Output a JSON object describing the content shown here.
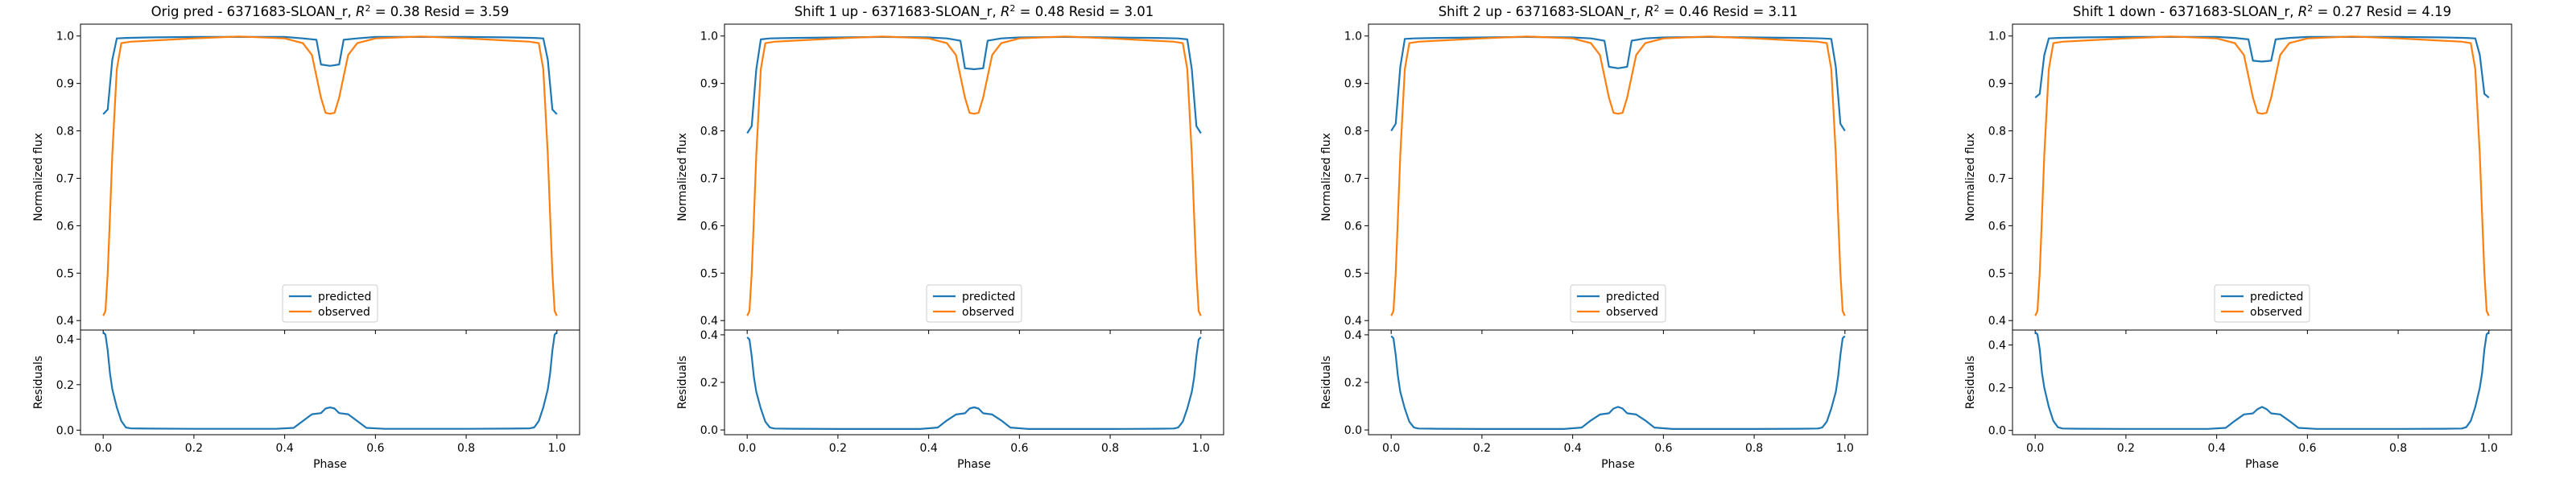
{
  "figure": {
    "background": "#ffffff",
    "colors": {
      "predicted": "#1f77b4",
      "observed": "#ff7f0e",
      "axis": "#000000"
    }
  },
  "chart_data": [
    {
      "type": "line",
      "title": "Orig pred - 6371683-SLOAN_r, R² = 0.38 Resid = 3.59",
      "r2": 0.38,
      "resid": {
        "xlabel": "Phase",
        "ylabel": "Residuals",
        "ylim": [
          -0.02,
          0.44
        ],
        "yticks": [
          0.0,
          0.2,
          0.4
        ],
        "xticks": [
          0.0,
          0.2,
          0.4,
          0.6,
          0.8,
          1.0
        ],
        "x": [
          0.0,
          0.005,
          0.01,
          0.015,
          0.02,
          0.03,
          0.04,
          0.05,
          0.06,
          0.1,
          0.2,
          0.3,
          0.38,
          0.42,
          0.44,
          0.46,
          0.48,
          0.49,
          0.5,
          0.51,
          0.52,
          0.54,
          0.56,
          0.58,
          0.62,
          0.7,
          0.8,
          0.9,
          0.94,
          0.95,
          0.96,
          0.97,
          0.98,
          0.985,
          0.99,
          0.995,
          1.0
        ],
        "y": [
          0.43,
          0.42,
          0.35,
          0.25,
          0.18,
          0.1,
          0.04,
          0.012,
          0.008,
          0.007,
          0.006,
          0.006,
          0.006,
          0.01,
          0.04,
          0.07,
          0.075,
          0.095,
          0.1,
          0.095,
          0.075,
          0.07,
          0.04,
          0.01,
          0.006,
          0.006,
          0.006,
          0.007,
          0.008,
          0.012,
          0.04,
          0.1,
          0.18,
          0.25,
          0.35,
          0.42,
          0.43
        ]
      },
      "main": {
        "ylabel": "Normalized flux",
        "xlim": [
          -0.05,
          1.05
        ],
        "ylim": [
          0.38,
          1.025
        ],
        "yticks": [
          0.4,
          0.5,
          0.6,
          0.7,
          0.8,
          0.9,
          1.0
        ],
        "legend": "lower center",
        "series": [
          {
            "name": "predicted",
            "color": "#1f77b4",
            "x": [
              0.0,
              0.01,
              0.02,
              0.03,
              0.05,
              0.1,
              0.2,
              0.3,
              0.4,
              0.44,
              0.47,
              0.48,
              0.5,
              0.52,
              0.53,
              0.56,
              0.6,
              0.7,
              0.8,
              0.9,
              0.95,
              0.97,
              0.98,
              0.99,
              1.0
            ],
            "y": [
              0.835,
              0.845,
              0.95,
              0.995,
              0.996,
              0.997,
              0.998,
              0.998,
              0.998,
              0.995,
              0.992,
              0.94,
              0.937,
              0.94,
              0.992,
              0.995,
              0.998,
              0.998,
              0.998,
              0.997,
              0.996,
              0.995,
              0.95,
              0.845,
              0.835
            ]
          },
          {
            "name": "observed",
            "color": "#ff7f0e",
            "x": [
              0.0,
              0.005,
              0.01,
              0.015,
              0.02,
              0.03,
              0.04,
              0.06,
              0.1,
              0.2,
              0.3,
              0.4,
              0.44,
              0.46,
              0.48,
              0.49,
              0.5,
              0.51,
              0.52,
              0.54,
              0.56,
              0.6,
              0.7,
              0.8,
              0.9,
              0.94,
              0.96,
              0.97,
              0.98,
              0.985,
              0.99,
              0.995,
              1.0
            ],
            "y": [
              0.41,
              0.42,
              0.5,
              0.62,
              0.75,
              0.93,
              0.985,
              0.988,
              0.99,
              0.995,
              0.999,
              0.995,
              0.985,
              0.96,
              0.87,
              0.838,
              0.836,
              0.838,
              0.87,
              0.96,
              0.985,
              0.995,
              0.999,
              0.995,
              0.99,
              0.988,
              0.985,
              0.93,
              0.75,
              0.62,
              0.5,
              0.42,
              0.41
            ]
          }
        ],
        "legend_entries": [
          "predicted",
          "observed"
        ]
      }
    },
    {
      "type": "line",
      "title": "Shift 1 up - 6371683-SLOAN_r, R² = 0.48 Resid = 3.01",
      "r2": 0.48,
      "resid": {
        "xlabel": "Phase",
        "ylabel": "Residuals",
        "ylim": [
          -0.02,
          0.42
        ],
        "yticks": [
          0.0,
          0.2,
          0.4
        ],
        "xticks": [
          0.0,
          0.2,
          0.4,
          0.6,
          0.8,
          1.0
        ],
        "x": [
          0.0,
          0.005,
          0.01,
          0.015,
          0.02,
          0.03,
          0.04,
          0.05,
          0.06,
          0.1,
          0.2,
          0.3,
          0.38,
          0.42,
          0.44,
          0.46,
          0.48,
          0.49,
          0.5,
          0.51,
          0.52,
          0.54,
          0.56,
          0.58,
          0.62,
          0.7,
          0.8,
          0.9,
          0.94,
          0.95,
          0.96,
          0.97,
          0.98,
          0.985,
          0.99,
          0.995,
          1.0
        ],
        "y": [
          0.39,
          0.38,
          0.31,
          0.22,
          0.16,
          0.09,
          0.035,
          0.01,
          0.006,
          0.005,
          0.004,
          0.004,
          0.004,
          0.01,
          0.04,
          0.065,
          0.07,
          0.09,
          0.095,
          0.09,
          0.07,
          0.065,
          0.04,
          0.01,
          0.004,
          0.004,
          0.004,
          0.005,
          0.006,
          0.01,
          0.035,
          0.09,
          0.16,
          0.22,
          0.31,
          0.38,
          0.39
        ]
      },
      "main": {
        "ylabel": "Normalized flux",
        "xlim": [
          -0.05,
          1.05
        ],
        "ylim": [
          0.38,
          1.025
        ],
        "yticks": [
          0.4,
          0.5,
          0.6,
          0.7,
          0.8,
          0.9,
          1.0
        ],
        "legend": "lower center",
        "series": [
          {
            "name": "predicted",
            "color": "#1f77b4",
            "x": [
              0.0,
              0.01,
              0.02,
              0.03,
              0.05,
              0.1,
              0.2,
              0.3,
              0.4,
              0.44,
              0.47,
              0.48,
              0.5,
              0.52,
              0.53,
              0.56,
              0.6,
              0.7,
              0.8,
              0.9,
              0.95,
              0.97,
              0.98,
              0.99,
              1.0
            ],
            "y": [
              0.795,
              0.81,
              0.93,
              0.993,
              0.995,
              0.996,
              0.997,
              0.998,
              0.997,
              0.995,
              0.99,
              0.932,
              0.93,
              0.932,
              0.99,
              0.995,
              0.997,
              0.998,
              0.997,
              0.996,
              0.995,
              0.993,
              0.93,
              0.81,
              0.795
            ]
          },
          {
            "name": "observed",
            "color": "#ff7f0e",
            "x": [
              0.0,
              0.005,
              0.01,
              0.015,
              0.02,
              0.03,
              0.04,
              0.06,
              0.1,
              0.2,
              0.3,
              0.4,
              0.44,
              0.46,
              0.48,
              0.49,
              0.5,
              0.51,
              0.52,
              0.54,
              0.56,
              0.6,
              0.7,
              0.8,
              0.9,
              0.94,
              0.96,
              0.97,
              0.98,
              0.985,
              0.99,
              0.995,
              1.0
            ],
            "y": [
              0.41,
              0.42,
              0.5,
              0.62,
              0.75,
              0.93,
              0.985,
              0.988,
              0.99,
              0.995,
              0.999,
              0.995,
              0.985,
              0.96,
              0.87,
              0.838,
              0.836,
              0.838,
              0.87,
              0.96,
              0.985,
              0.995,
              0.999,
              0.995,
              0.99,
              0.988,
              0.985,
              0.93,
              0.75,
              0.62,
              0.5,
              0.42,
              0.41
            ]
          }
        ],
        "legend_entries": [
          "predicted",
          "observed"
        ]
      }
    },
    {
      "type": "line",
      "title": "Shift 2 up - 6371683-SLOAN_r, R² = 0.46 Resid = 3.11",
      "r2": 0.46,
      "resid": {
        "xlabel": "Phase",
        "ylabel": "Residuals",
        "ylim": [
          -0.02,
          0.42
        ],
        "yticks": [
          0.0,
          0.2,
          0.4
        ],
        "xticks": [
          0.0,
          0.2,
          0.4,
          0.6,
          0.8,
          1.0
        ],
        "x": [
          0.0,
          0.005,
          0.01,
          0.015,
          0.02,
          0.03,
          0.04,
          0.05,
          0.06,
          0.1,
          0.2,
          0.3,
          0.38,
          0.42,
          0.44,
          0.46,
          0.48,
          0.49,
          0.5,
          0.51,
          0.52,
          0.54,
          0.56,
          0.58,
          0.62,
          0.7,
          0.8,
          0.9,
          0.94,
          0.95,
          0.96,
          0.97,
          0.98,
          0.985,
          0.99,
          0.995,
          1.0
        ],
        "y": [
          0.395,
          0.385,
          0.315,
          0.225,
          0.16,
          0.09,
          0.035,
          0.01,
          0.006,
          0.005,
          0.004,
          0.004,
          0.004,
          0.01,
          0.04,
          0.065,
          0.07,
          0.09,
          0.097,
          0.09,
          0.07,
          0.065,
          0.04,
          0.01,
          0.004,
          0.004,
          0.004,
          0.005,
          0.006,
          0.01,
          0.035,
          0.09,
          0.16,
          0.225,
          0.315,
          0.385,
          0.395
        ]
      },
      "main": {
        "ylabel": "Normalized flux",
        "xlim": [
          -0.05,
          1.05
        ],
        "ylim": [
          0.38,
          1.025
        ],
        "yticks": [
          0.4,
          0.5,
          0.6,
          0.7,
          0.8,
          0.9,
          1.0
        ],
        "legend": "lower center",
        "series": [
          {
            "name": "predicted",
            "color": "#1f77b4",
            "x": [
              0.0,
              0.01,
              0.02,
              0.03,
              0.05,
              0.1,
              0.2,
              0.3,
              0.4,
              0.44,
              0.47,
              0.48,
              0.5,
              0.52,
              0.53,
              0.56,
              0.6,
              0.7,
              0.8,
              0.9,
              0.95,
              0.97,
              0.98,
              0.99,
              1.0
            ],
            "y": [
              0.8,
              0.815,
              0.935,
              0.994,
              0.995,
              0.996,
              0.997,
              0.998,
              0.997,
              0.995,
              0.99,
              0.935,
              0.932,
              0.935,
              0.99,
              0.995,
              0.997,
              0.998,
              0.997,
              0.996,
              0.995,
              0.994,
              0.935,
              0.815,
              0.8
            ]
          },
          {
            "name": "observed",
            "color": "#ff7f0e",
            "x": [
              0.0,
              0.005,
              0.01,
              0.015,
              0.02,
              0.03,
              0.04,
              0.06,
              0.1,
              0.2,
              0.3,
              0.4,
              0.44,
              0.46,
              0.48,
              0.49,
              0.5,
              0.51,
              0.52,
              0.54,
              0.56,
              0.6,
              0.7,
              0.8,
              0.9,
              0.94,
              0.96,
              0.97,
              0.98,
              0.985,
              0.99,
              0.995,
              1.0
            ],
            "y": [
              0.41,
              0.42,
              0.5,
              0.62,
              0.75,
              0.93,
              0.985,
              0.988,
              0.99,
              0.995,
              0.999,
              0.995,
              0.985,
              0.96,
              0.87,
              0.838,
              0.836,
              0.838,
              0.87,
              0.96,
              0.985,
              0.995,
              0.999,
              0.995,
              0.99,
              0.988,
              0.985,
              0.93,
              0.75,
              0.62,
              0.5,
              0.42,
              0.41
            ]
          }
        ],
        "legend_entries": [
          "predicted",
          "observed"
        ]
      }
    },
    {
      "type": "line",
      "title": "Shift 1 down - 6371683-SLOAN_r, R² = 0.27 Resid = 4.19",
      "r2": 0.27,
      "resid": {
        "xlabel": "Phase",
        "ylabel": "Residuals",
        "ylim": [
          -0.02,
          0.47
        ],
        "yticks": [
          0.0,
          0.2,
          0.4
        ],
        "xticks": [
          0.0,
          0.2,
          0.4,
          0.6,
          0.8,
          1.0
        ],
        "x": [
          0.0,
          0.005,
          0.01,
          0.015,
          0.02,
          0.03,
          0.04,
          0.05,
          0.06,
          0.1,
          0.2,
          0.3,
          0.38,
          0.42,
          0.44,
          0.46,
          0.48,
          0.49,
          0.5,
          0.51,
          0.52,
          0.54,
          0.56,
          0.58,
          0.62,
          0.7,
          0.8,
          0.9,
          0.94,
          0.95,
          0.96,
          0.97,
          0.98,
          0.985,
          0.99,
          0.995,
          1.0
        ],
        "y": [
          0.46,
          0.45,
          0.38,
          0.27,
          0.2,
          0.11,
          0.045,
          0.015,
          0.009,
          0.008,
          0.007,
          0.007,
          0.007,
          0.012,
          0.045,
          0.075,
          0.08,
          0.1,
          0.11,
          0.1,
          0.08,
          0.075,
          0.045,
          0.012,
          0.007,
          0.007,
          0.007,
          0.008,
          0.009,
          0.015,
          0.045,
          0.11,
          0.2,
          0.27,
          0.38,
          0.45,
          0.46
        ]
      },
      "main": {
        "ylabel": "Normalized flux",
        "xlim": [
          -0.05,
          1.05
        ],
        "ylim": [
          0.38,
          1.025
        ],
        "yticks": [
          0.4,
          0.5,
          0.6,
          0.7,
          0.8,
          0.9,
          1.0
        ],
        "legend": "lower center",
        "series": [
          {
            "name": "predicted",
            "color": "#1f77b4",
            "x": [
              0.0,
              0.01,
              0.02,
              0.03,
              0.05,
              0.1,
              0.2,
              0.3,
              0.4,
              0.44,
              0.47,
              0.48,
              0.5,
              0.52,
              0.53,
              0.56,
              0.6,
              0.7,
              0.8,
              0.9,
              0.95,
              0.97,
              0.98,
              0.99,
              1.0
            ],
            "y": [
              0.87,
              0.878,
              0.96,
              0.995,
              0.996,
              0.997,
              0.998,
              0.998,
              0.998,
              0.996,
              0.993,
              0.948,
              0.946,
              0.948,
              0.993,
              0.996,
              0.998,
              0.998,
              0.998,
              0.997,
              0.996,
              0.995,
              0.96,
              0.878,
              0.87
            ]
          },
          {
            "name": "observed",
            "color": "#ff7f0e",
            "x": [
              0.0,
              0.005,
              0.01,
              0.015,
              0.02,
              0.03,
              0.04,
              0.06,
              0.1,
              0.2,
              0.3,
              0.4,
              0.44,
              0.46,
              0.48,
              0.49,
              0.5,
              0.51,
              0.52,
              0.54,
              0.56,
              0.6,
              0.7,
              0.8,
              0.9,
              0.94,
              0.96,
              0.97,
              0.98,
              0.985,
              0.99,
              0.995,
              1.0
            ],
            "y": [
              0.41,
              0.42,
              0.5,
              0.62,
              0.75,
              0.93,
              0.985,
              0.988,
              0.99,
              0.995,
              0.999,
              0.995,
              0.985,
              0.96,
              0.87,
              0.838,
              0.836,
              0.838,
              0.87,
              0.96,
              0.985,
              0.995,
              0.999,
              0.995,
              0.99,
              0.988,
              0.985,
              0.93,
              0.75,
              0.62,
              0.5,
              0.42,
              0.41
            ]
          }
        ],
        "legend_entries": [
          "predicted",
          "observed"
        ]
      }
    }
  ]
}
